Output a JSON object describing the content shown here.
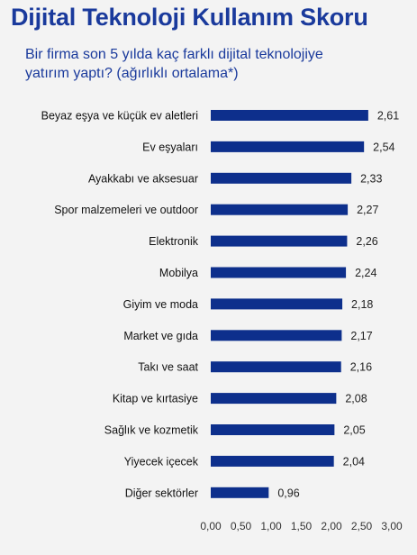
{
  "header": {
    "title": "Dijital Teknoloji Kullanım Skoru",
    "subtitle_line1": "Bir firma son 5 yılda kaç farklı dijital teknolojiye",
    "subtitle_line2": "yatırım yaptı? (ağırlıklı ortalama*)"
  },
  "colors": {
    "bar": "#0d2f8c",
    "title": "#1a3a9c",
    "background": "#f3f3f3"
  },
  "chart_data": {
    "type": "bar",
    "orientation": "horizontal",
    "title": "Dijital Teknoloji Kullanım Skoru",
    "subtitle": "Bir firma son 5 yılda kaç farklı dijital teknolojiye yatırım yaptı? (ağırlıklı ortalama*)",
    "categories": [
      "Beyaz eşya ve küçük ev aletleri",
      "Ev eşyaları",
      "Ayakkabı ve aksesuar",
      "Spor malzemeleri ve outdoor",
      "Elektronik",
      "Mobilya",
      "Giyim ve moda",
      "Market ve gıda",
      "Takı ve saat",
      "Kitap ve kırtasiye",
      "Sağlık ve kozmetik",
      "Yiyecek içecek",
      "Diğer sektörler"
    ],
    "values": [
      2.61,
      2.54,
      2.33,
      2.27,
      2.26,
      2.24,
      2.18,
      2.17,
      2.16,
      2.08,
      2.05,
      2.04,
      0.96
    ],
    "value_labels": [
      "2,61",
      "2,54",
      "2,33",
      "2,27",
      "2,26",
      "2,24",
      "2,18",
      "2,17",
      "2,16",
      "2,08",
      "2,05",
      "2,04",
      "0,96"
    ],
    "xlim": [
      0,
      3
    ],
    "xticks": [
      0,
      0.5,
      1,
      1.5,
      2,
      2.5,
      3
    ],
    "xtick_labels": [
      "0,00",
      "0,50",
      "1,00",
      "1,50",
      "2,00",
      "2,50",
      "3,00"
    ],
    "grid": false,
    "legend": false
  }
}
